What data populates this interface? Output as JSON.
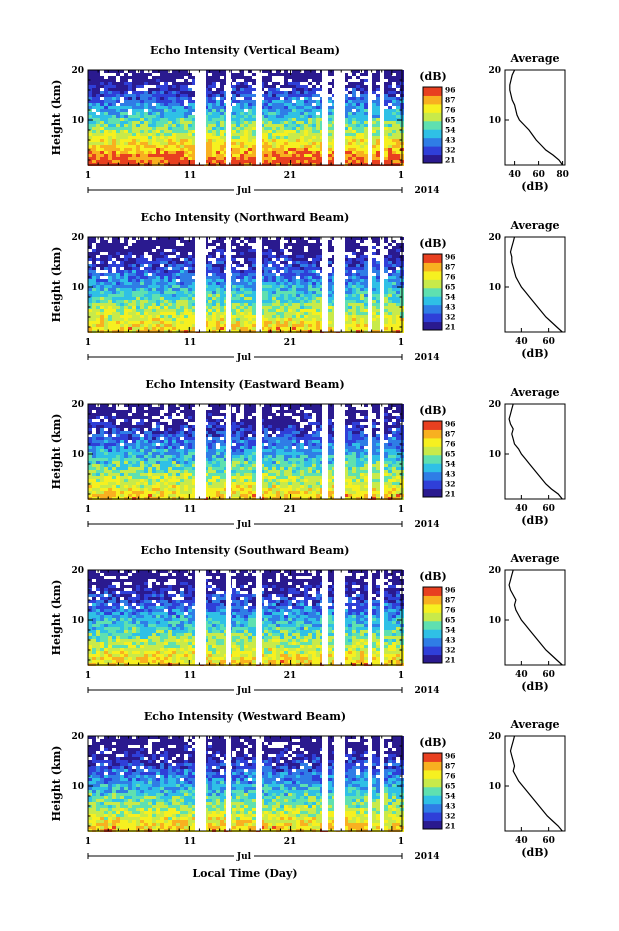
{
  "chart_data": [
    {
      "type": "heatmap",
      "title": "Echo Intensity (Vertical Beam)",
      "ylabel": "Height (km)",
      "yticks": [
        "20",
        "10"
      ],
      "ylim": [
        1,
        20
      ],
      "xticks": [
        "1",
        "11",
        "21",
        "1"
      ],
      "month": "Jul",
      "year": "2014",
      "colorbar": {
        "title": "(dB)",
        "ticks": [
          "96",
          "87",
          "76",
          "65",
          "54",
          "43",
          "32",
          "21"
        ]
      },
      "average": {
        "title": "Average",
        "xlabel": "(dB)",
        "xticks": [
          "40",
          "60",
          "80"
        ],
        "xlim": [
          32,
          82
        ],
        "yticks": [
          "20",
          "10"
        ],
        "profile": [
          [
            80,
            1
          ],
          [
            77,
            2
          ],
          [
            72,
            3
          ],
          [
            66,
            4
          ],
          [
            62,
            5
          ],
          [
            58,
            6
          ],
          [
            55,
            7
          ],
          [
            52,
            8
          ],
          [
            48,
            9
          ],
          [
            44,
            10
          ],
          [
            42,
            11
          ],
          [
            41,
            12
          ],
          [
            40,
            13
          ],
          [
            38,
            14
          ],
          [
            37,
            15
          ],
          [
            36,
            16
          ],
          [
            36,
            17
          ],
          [
            37,
            18
          ],
          [
            38,
            19
          ],
          [
            40,
            20
          ]
        ]
      }
    },
    {
      "type": "heatmap",
      "title": "Echo Intensity (Northward Beam)",
      "ylabel": "Height (km)",
      "yticks": [
        "20",
        "10"
      ],
      "ylim": [
        1,
        20
      ],
      "xticks": [
        "1",
        "11",
        "21",
        "1"
      ],
      "month": "Jul",
      "year": "2014",
      "colorbar": {
        "title": "(dB)",
        "ticks": [
          "96",
          "87",
          "76",
          "65",
          "54",
          "43",
          "32",
          "21"
        ]
      },
      "average": {
        "title": "Average",
        "xlabel": "(dB)",
        "xticks": [
          "40",
          "60"
        ],
        "xlim": [
          28,
          72
        ],
        "yticks": [
          "20",
          "10"
        ],
        "profile": [
          [
            70,
            1
          ],
          [
            66,
            2
          ],
          [
            62,
            3
          ],
          [
            58,
            4
          ],
          [
            55,
            5
          ],
          [
            52,
            6
          ],
          [
            49,
            7
          ],
          [
            46,
            8
          ],
          [
            43,
            9
          ],
          [
            40,
            10
          ],
          [
            38,
            11
          ],
          [
            36,
            12
          ],
          [
            35,
            13
          ],
          [
            34,
            14
          ],
          [
            33,
            15
          ],
          [
            33,
            16
          ],
          [
            32,
            17
          ],
          [
            33,
            18
          ],
          [
            34,
            19
          ],
          [
            35,
            20
          ]
        ]
      }
    },
    {
      "type": "heatmap",
      "title": "Echo Intensity (Eastward Beam)",
      "ylabel": "Height (km)",
      "yticks": [
        "20",
        "10"
      ],
      "ylim": [
        1,
        20
      ],
      "xticks": [
        "1",
        "11",
        "21",
        "1"
      ],
      "month": "Jul",
      "year": "2014",
      "colorbar": {
        "title": "(dB)",
        "ticks": [
          "96",
          "87",
          "76",
          "65",
          "54",
          "43",
          "32",
          "21"
        ]
      },
      "average": {
        "title": "Average",
        "xlabel": "(dB)",
        "xticks": [
          "40",
          "60"
        ],
        "xlim": [
          28,
          72
        ],
        "yticks": [
          "20",
          "10"
        ],
        "profile": [
          [
            70,
            1
          ],
          [
            67,
            2
          ],
          [
            62,
            3
          ],
          [
            58,
            4
          ],
          [
            55,
            5
          ],
          [
            52,
            6
          ],
          [
            49,
            7
          ],
          [
            46,
            8
          ],
          [
            43,
            9
          ],
          [
            40,
            10
          ],
          [
            38,
            11
          ],
          [
            35,
            12
          ],
          [
            34,
            13
          ],
          [
            33,
            14
          ],
          [
            34,
            15
          ],
          [
            32,
            16
          ],
          [
            31,
            17
          ],
          [
            32,
            18
          ],
          [
            33,
            19
          ],
          [
            34,
            20
          ]
        ]
      }
    },
    {
      "type": "heatmap",
      "title": "Echo Intensity (Southward Beam)",
      "ylabel": "Height (km)",
      "yticks": [
        "20",
        "10"
      ],
      "ylim": [
        1,
        20
      ],
      "xticks": [
        "1",
        "11",
        "21",
        "1"
      ],
      "month": "Jul",
      "year": "2014",
      "colorbar": {
        "title": "(dB)",
        "ticks": [
          "96",
          "87",
          "76",
          "65",
          "54",
          "43",
          "32",
          "21"
        ]
      },
      "average": {
        "title": "Average",
        "xlabel": "(dB)",
        "xticks": [
          "40",
          "60"
        ],
        "xlim": [
          28,
          72
        ],
        "yticks": [
          "20",
          "10"
        ],
        "profile": [
          [
            70,
            1
          ],
          [
            66,
            2
          ],
          [
            62,
            3
          ],
          [
            58,
            4
          ],
          [
            55,
            5
          ],
          [
            52,
            6
          ],
          [
            49,
            7
          ],
          [
            46,
            8
          ],
          [
            43,
            9
          ],
          [
            40,
            10
          ],
          [
            38,
            11
          ],
          [
            36,
            12
          ],
          [
            35,
            13
          ],
          [
            36,
            14
          ],
          [
            34,
            15
          ],
          [
            32,
            16
          ],
          [
            31,
            17
          ],
          [
            32,
            18
          ],
          [
            33,
            19
          ],
          [
            34,
            20
          ]
        ]
      }
    },
    {
      "type": "heatmap",
      "title": "Echo Intensity (Westward Beam)",
      "ylabel": "Height (km)",
      "yticks": [
        "20",
        "10"
      ],
      "ylim": [
        1,
        20
      ],
      "xticks": [
        "1",
        "11",
        "21",
        "1"
      ],
      "month": "Jul",
      "year": "2014",
      "colorbar": {
        "title": "(dB)",
        "ticks": [
          "96",
          "87",
          "76",
          "65",
          "54",
          "43",
          "32",
          "21"
        ]
      },
      "average": {
        "title": "Average",
        "xlabel": "(dB)",
        "xticks": [
          "40",
          "60"
        ],
        "xlim": [
          28,
          72
        ],
        "yticks": [
          "20",
          "10"
        ],
        "profile": [
          [
            70,
            1
          ],
          [
            67,
            2
          ],
          [
            63,
            3
          ],
          [
            59,
            4
          ],
          [
            56,
            5
          ],
          [
            53,
            6
          ],
          [
            50,
            7
          ],
          [
            47,
            8
          ],
          [
            44,
            9
          ],
          [
            41,
            10
          ],
          [
            38,
            11
          ],
          [
            36,
            12
          ],
          [
            34,
            13
          ],
          [
            35,
            14
          ],
          [
            34,
            15
          ],
          [
            33,
            16
          ],
          [
            32,
            17
          ],
          [
            33,
            18
          ],
          [
            34,
            19
          ],
          [
            35,
            20
          ]
        ]
      }
    }
  ],
  "footer": {
    "xlabel": "Local Time (Day)"
  },
  "colors": {
    "scale": [
      "#2a1a8f",
      "#2f3fd8",
      "#2f7de6",
      "#2fc0e6",
      "#5fe0b0",
      "#c8ea4a",
      "#f6f020",
      "#f8b020",
      "#e84020"
    ]
  }
}
